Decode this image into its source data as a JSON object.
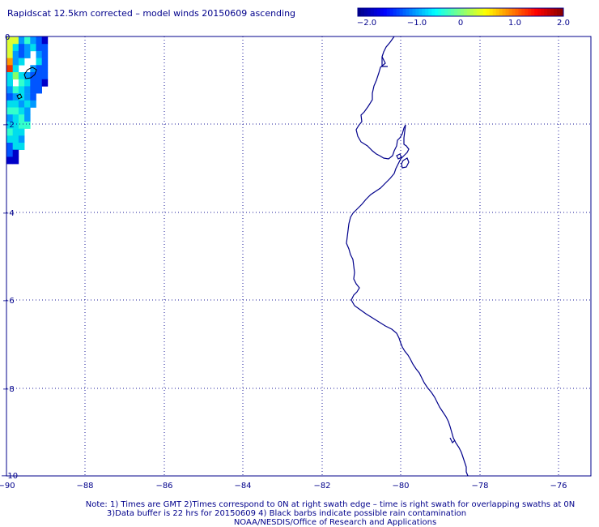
{
  "title": "Rapidscat 12.5km corrected – model winds 20150609 ascending",
  "colorbar": {
    "ticks": [
      "−2.0",
      "−1.0",
      "0",
      "1.0",
      "2.0"
    ],
    "range": [
      -2.0,
      2.0
    ],
    "colors": [
      "#00008b",
      "#0000ff",
      "#0080ff",
      "#00ffff",
      "#80ff80",
      "#ffff00",
      "#ff8000",
      "#ff0000",
      "#8b0000"
    ]
  },
  "axes": {
    "x_ticks": [
      "−90",
      "−88",
      "−86",
      "−84",
      "−82",
      "−80",
      "−78",
      "−76"
    ],
    "y_ticks": [
      "0",
      "−2",
      "−4",
      "−6",
      "−8",
      "−10"
    ],
    "lon_range": [
      -90,
      -75.5
    ],
    "lat_range": [
      -10,
      0
    ]
  },
  "coastline_color": "#00008b",
  "grid_color": "#1a1a9a",
  "notes": [
    "Note: 1) Times are GMT 2)Times correspond to 0N at right swath edge – time is right swath for overlapping swaths at 0N",
    "3)Data buffer is 22 hrs for 20150609 4) Black barbs indicate possible rain contamination",
    "NOAA/NESDIS/Office of Research and Applications"
  ]
}
